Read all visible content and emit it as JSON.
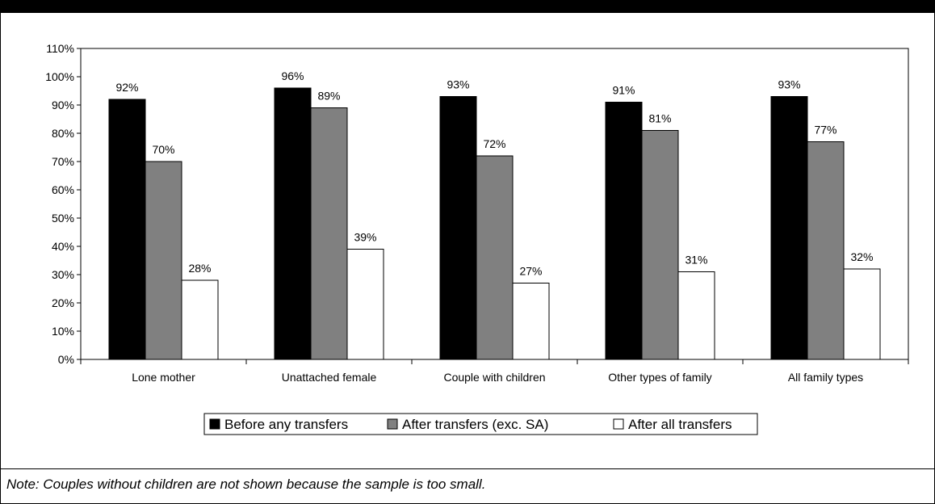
{
  "title": "",
  "note": "Note: Couples without children are not shown because the sample is too small.",
  "chart_data": {
    "type": "bar",
    "categories": [
      "Lone mother",
      "Unattached female",
      "Couple with children",
      "Other types of family",
      "All family types"
    ],
    "series": [
      {
        "name": "Before any transfers",
        "values": [
          92,
          96,
          93,
          91,
          93
        ],
        "color": "#000000"
      },
      {
        "name": "After transfers (exc. SA)",
        "values": [
          70,
          89,
          72,
          81,
          77
        ],
        "color": "#808080"
      },
      {
        "name": "After all transfers",
        "values": [
          28,
          39,
          27,
          31,
          32
        ],
        "color": "#ffffff"
      }
    ],
    "value_suffix": "%",
    "ylim": [
      0,
      110
    ],
    "y_ticks": [
      0,
      10,
      20,
      30,
      40,
      50,
      60,
      70,
      80,
      90,
      100,
      110
    ],
    "grid": false,
    "legend": "bottom-center"
  }
}
